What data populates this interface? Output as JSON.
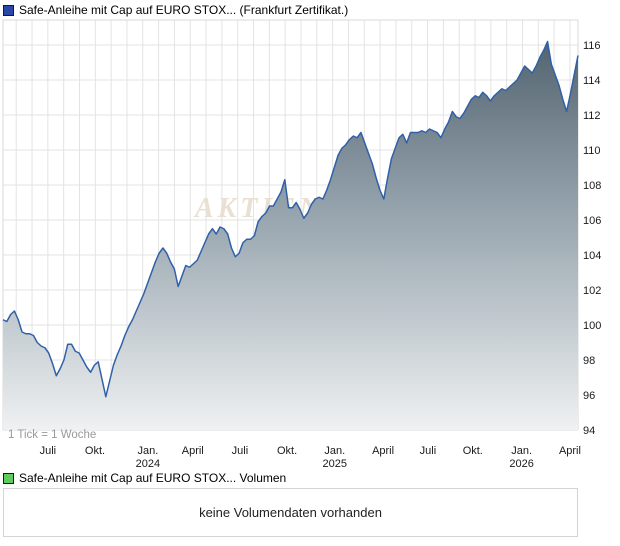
{
  "header": {
    "title": "Safe-Anleihe mit Cap auf EURO STOX... (Frankfurt Zertifikat.)",
    "marker_color": "#2847a8"
  },
  "chart": {
    "tick_note": "1 Tick = 1 Woche",
    "watermark": "AKTIEN",
    "colors": {
      "line": "#3060a8",
      "fill_top": "#4b5c68",
      "fill_mid": "#93a1ab",
      "fill_bottom": "#eff1f2",
      "grid": "#e3e3e3",
      "border": "#d9d9d9",
      "watermark": "#e8e1d3",
      "axis_text": "#1a1a1a",
      "note_text": "#9a9a9a"
    }
  },
  "chart_data": {
    "type": "area",
    "title": "Safe-Anleihe mit Cap auf EURO STOX... (Frankfurt Zertifikat.)",
    "x_unit": "1 Tick = 1 Woche",
    "ylim": [
      94,
      117.4
    ],
    "y_ticks": [
      116,
      114,
      112,
      110,
      108,
      106,
      104,
      102,
      100,
      98,
      96,
      94
    ],
    "x_ticks": [
      {
        "label": "Juli",
        "year": "",
        "pos": 0.078
      },
      {
        "label": "Okt.",
        "year": "",
        "pos": 0.16
      },
      {
        "label": "Jan.",
        "year": "2024",
        "pos": 0.252
      },
      {
        "label": "April",
        "year": "",
        "pos": 0.33
      },
      {
        "label": "Juli",
        "year": "",
        "pos": 0.412
      },
      {
        "label": "Okt.",
        "year": "",
        "pos": 0.494
      },
      {
        "label": "Jan.",
        "year": "2025",
        "pos": 0.577
      },
      {
        "label": "April",
        "year": "",
        "pos": 0.661
      },
      {
        "label": "Juli",
        "year": "",
        "pos": 0.739
      },
      {
        "label": "Okt.",
        "year": "",
        "pos": 0.817
      },
      {
        "label": "Jan.",
        "year": "2026",
        "pos": 0.902
      },
      {
        "label": "April",
        "year": "",
        "pos": 0.986
      }
    ],
    "series": [
      {
        "name": "Safe-Anleihe mit Cap auf EURO STOX... (Frankfurt Zertifikat.)",
        "values": [
          100.3,
          100.2,
          100.6,
          100.8,
          100.3,
          99.6,
          99.5,
          99.5,
          99.4,
          99.0,
          98.8,
          98.7,
          98.4,
          97.8,
          97.1,
          97.5,
          98.0,
          98.9,
          98.9,
          98.5,
          98.4,
          98.0,
          97.6,
          97.3,
          97.7,
          97.9,
          96.9,
          95.9,
          96.8,
          97.7,
          98.3,
          98.8,
          99.4,
          99.9,
          100.3,
          100.8,
          101.3,
          101.8,
          102.4,
          103.0,
          103.6,
          104.1,
          104.4,
          104.1,
          103.6,
          103.2,
          102.2,
          102.8,
          103.4,
          103.3,
          103.5,
          103.7,
          104.2,
          104.7,
          105.2,
          105.5,
          105.2,
          105.6,
          105.5,
          105.2,
          104.4,
          103.9,
          104.1,
          104.7,
          104.9,
          104.9,
          105.1,
          105.9,
          106.2,
          106.4,
          106.8,
          106.8,
          107.2,
          107.6,
          108.3,
          106.7,
          106.7,
          107.0,
          106.6,
          106.1,
          106.4,
          106.9,
          107.2,
          107.3,
          107.2,
          107.7,
          108.3,
          109.0,
          109.7,
          110.1,
          110.3,
          110.6,
          110.8,
          110.7,
          111.0,
          110.4,
          109.8,
          109.2,
          108.4,
          107.7,
          107.2,
          108.4,
          109.5,
          110.1,
          110.7,
          110.9,
          110.4,
          111.0,
          111.0,
          111.0,
          111.1,
          111.0,
          111.2,
          111.1,
          111.0,
          110.7,
          111.2,
          111.6,
          112.2,
          111.9,
          111.8,
          112.1,
          112.5,
          112.9,
          113.1,
          113.0,
          113.3,
          113.1,
          112.8,
          113.1,
          113.3,
          113.5,
          113.4,
          113.6,
          113.8,
          114.0,
          114.4,
          114.8,
          114.6,
          114.4,
          114.8,
          115.3,
          115.7,
          116.2,
          114.9,
          114.3,
          113.7,
          112.9,
          112.2,
          113.2,
          114.3,
          115.4
        ]
      }
    ]
  },
  "volume": {
    "label": "Safe-Anleihe mit Cap auf EURO STOX... Volumen",
    "marker_color": "#5ecc5e",
    "message": "keine Volumendaten vorhanden"
  }
}
